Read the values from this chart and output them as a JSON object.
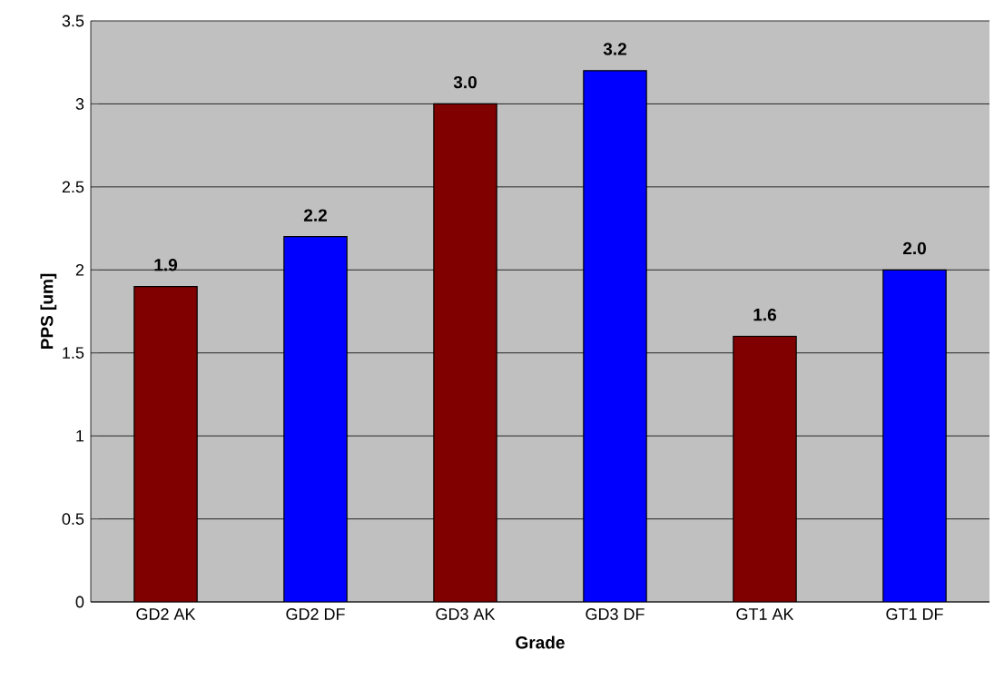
{
  "chart_data": {
    "type": "bar",
    "xlabel": "Grade",
    "ylabel": "PPS [um]",
    "categories": [
      "GD2 AK",
      "GD2 DF",
      "GD3 AK",
      "GD3 DF",
      "GT1 AK",
      "GT1 DF"
    ],
    "values": [
      1.9,
      2.2,
      3.0,
      3.2,
      1.6,
      2.0
    ],
    "colors": [
      "#800000",
      "#0000ff",
      "#800000",
      "#0000ff",
      "#800000",
      "#0000ff"
    ],
    "value_labels": [
      "1.9",
      "2.2",
      "3.0",
      "3.2",
      "1.6",
      "2.0"
    ],
    "ylim": [
      0,
      3.5
    ],
    "yticks": [
      0,
      0.5,
      1,
      1.5,
      2,
      2.5,
      3,
      3.5
    ],
    "grid": "y"
  }
}
